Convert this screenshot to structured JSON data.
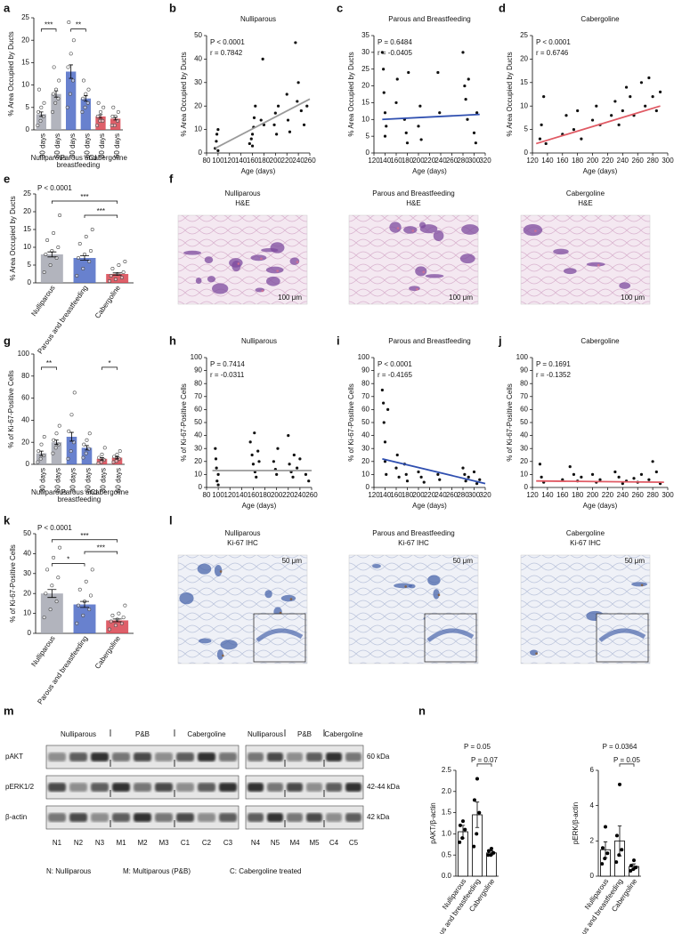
{
  "panel_labels": [
    "a",
    "b",
    "c",
    "d",
    "e",
    "f",
    "g",
    "h",
    "i",
    "j",
    "k",
    "l",
    "m",
    "n"
  ],
  "chart_data": [
    {
      "type": "bar",
      "ylabel": "% Area Occupied by Ducts",
      "categories": [
        "30 days",
        "60 days",
        "30 days",
        "60 days",
        "30 days",
        "60 days"
      ],
      "groups": [
        [
          "Nulliparous"
        ],
        [
          "Parous and",
          "breastfeeding"
        ],
        [
          "Cabergoline"
        ]
      ],
      "values": [
        3.5,
        8,
        13,
        7,
        3,
        2.5
      ],
      "errors": [
        0.5,
        0.7,
        1.5,
        0.6,
        0.4,
        0.3
      ],
      "points": [
        [
          1,
          2,
          3,
          4,
          5,
          6,
          9
        ],
        [
          4,
          6,
          7,
          8,
          9,
          11,
          14
        ],
        [
          5,
          8,
          11,
          14,
          17,
          20,
          24
        ],
        [
          4,
          5,
          6,
          7,
          8,
          9,
          11
        ],
        [
          1,
          2,
          2,
          3,
          4,
          5,
          6
        ],
        [
          1,
          1,
          2,
          3,
          3,
          4,
          5
        ]
      ],
      "colors": [
        "#a4a7b2",
        "#a4a7b2",
        "#4d6bc6",
        "#4d6bc6",
        "#d8434f",
        "#d8434f"
      ],
      "point_style": "open",
      "ylim": [
        0,
        25
      ],
      "yticks": [
        0,
        5,
        10,
        15,
        20,
        25
      ],
      "annotations": [
        "***",
        "**"
      ]
    },
    {
      "type": "scatter",
      "title": "Nulliparous",
      "xlabel": "Age (days)",
      "ylabel": "% Area Occupied by Ducts",
      "stats": [
        "P < 0.0001",
        "r = 0.7842"
      ],
      "x": [
        95,
        97,
        98,
        100,
        100,
        155,
        158,
        160,
        160,
        162,
        163,
        165,
        175,
        178,
        180,
        198,
        200,
        202,
        205,
        220,
        222,
        225,
        235,
        238,
        240,
        245,
        250,
        255
      ],
      "y": [
        2,
        5,
        8,
        1,
        10,
        4,
        6,
        3,
        8,
        11,
        15,
        20,
        14,
        40,
        12,
        12,
        17,
        8,
        20,
        25,
        14,
        9,
        47,
        22,
        30,
        18,
        12,
        20
      ],
      "color": "#111111",
      "fit": {
        "x": [
          95,
          260
        ],
        "y": [
          2,
          23
        ],
        "color": "#9a9a9a"
      },
      "xlim": [
        80,
        260
      ],
      "xticks": [
        80,
        100,
        120,
        140,
        160,
        180,
        200,
        220,
        240,
        260
      ],
      "ylim": [
        0,
        50
      ],
      "yticks": [
        0,
        10,
        20,
        30,
        40,
        50
      ]
    },
    {
      "type": "scatter",
      "title": "Parous and Breastfeeding",
      "xlabel": "Age (days)",
      "ylabel": "% Area Occupied by Ducts",
      "stats": [
        "P = 0.6484",
        "r = -0.0405"
      ],
      "x": [
        135,
        137,
        138,
        140,
        140,
        142,
        160,
        162,
        175,
        178,
        180,
        182,
        200,
        203,
        205,
        235,
        238,
        280,
        283,
        285,
        288,
        290,
        300,
        303,
        305
      ],
      "y": [
        30,
        25,
        18,
        12,
        5,
        8,
        15,
        22,
        10,
        6,
        3,
        24,
        8,
        14,
        4,
        24,
        12,
        30,
        20,
        16,
        10,
        22,
        6,
        3,
        12
      ],
      "color": "#111111",
      "fit": {
        "x": [
          135,
          310
        ],
        "y": [
          10,
          11.5
        ],
        "color": "#2f4fb0"
      },
      "xlim": [
        120,
        320
      ],
      "xticks": [
        120,
        140,
        160,
        180,
        200,
        220,
        240,
        260,
        280,
        300,
        320
      ],
      "ylim": [
        0,
        35
      ],
      "yticks": [
        0,
        5,
        10,
        15,
        20,
        25,
        30,
        35
      ]
    },
    {
      "type": "scatter",
      "title": "Cabergoline",
      "xlabel": "Age (days)",
      "ylabel": "% Area Occupied by Ducts",
      "stats": [
        "P < 0.0001",
        "r = 0.6746"
      ],
      "x": [
        130,
        132,
        135,
        138,
        160,
        165,
        175,
        180,
        185,
        200,
        205,
        210,
        225,
        230,
        235,
        240,
        245,
        250,
        255,
        265,
        270,
        275,
        280,
        285,
        290
      ],
      "y": [
        3,
        6,
        12,
        2,
        4,
        8,
        5,
        9,
        3,
        7,
        10,
        6,
        8,
        11,
        6,
        9,
        14,
        12,
        8,
        15,
        10,
        16,
        12,
        9,
        13
      ],
      "color": "#111111",
      "fit": {
        "x": [
          125,
          290
        ],
        "y": [
          2,
          10
        ],
        "color": "#e05a64"
      },
      "xlim": [
        120,
        300
      ],
      "xticks": [
        120,
        140,
        160,
        180,
        200,
        220,
        240,
        260,
        280,
        300
      ],
      "ylim": [
        0,
        25
      ],
      "yticks": [
        0,
        5,
        10,
        15,
        20,
        25
      ]
    },
    {
      "type": "bar",
      "ylabel": "% Area Occupied by Ducts",
      "categories": [
        "Nulliparous",
        "Parous and breastfeeding",
        "Cabergoline"
      ],
      "values": [
        8,
        7,
        2.5
      ],
      "errors": [
        0.7,
        0.6,
        0.3
      ],
      "points": [
        [
          3,
          5,
          7,
          8,
          9,
          10,
          12,
          14,
          19
        ],
        [
          2,
          4,
          6,
          7,
          8,
          9,
          11,
          13,
          15
        ],
        [
          0.5,
          1,
          1.5,
          2,
          2.5,
          3,
          4,
          5,
          6
        ]
      ],
      "colors": [
        "#a4a7b2",
        "#4d6bc6",
        "#d8434f"
      ],
      "point_style": "open",
      "ylim": [
        0,
        25
      ],
      "yticks": [
        0,
        5,
        10,
        15,
        20,
        25
      ],
      "stats": [
        "P < 0.0001"
      ],
      "annotations": [
        "***",
        "***"
      ]
    },
    {
      "type": "bar",
      "ylabel": "% of Ki-67-Positive Cells",
      "categories": [
        "30 days",
        "60 days",
        "30 days",
        "60 days",
        "30 days",
        "60 days"
      ],
      "groups": [
        [
          "Nulliparous"
        ],
        [
          "Parous and",
          "breastfeeding"
        ],
        [
          "Cabergoline"
        ]
      ],
      "values": [
        10,
        20,
        25,
        15,
        5,
        6
      ],
      "errors": [
        2,
        2,
        4,
        2,
        1,
        1
      ],
      "points": [
        [
          2,
          5,
          8,
          12,
          18,
          25
        ],
        [
          10,
          15,
          18,
          22,
          28,
          35
        ],
        [
          5,
          12,
          20,
          30,
          45,
          65
        ],
        [
          6,
          10,
          14,
          18,
          22,
          28
        ],
        [
          1,
          2,
          4,
          6,
          9,
          15
        ],
        [
          2,
          3,
          5,
          7,
          9,
          12
        ]
      ],
      "colors": [
        "#a4a7b2",
        "#a4a7b2",
        "#4d6bc6",
        "#4d6bc6",
        "#d8434f",
        "#d8434f"
      ],
      "point_style": "open",
      "ylim": [
        0,
        100
      ],
      "yticks": [
        0,
        20,
        40,
        60,
        80,
        100
      ],
      "annotations": [
        "**",
        "*"
      ]
    },
    {
      "type": "scatter",
      "title": "Nulliparous",
      "xlabel": "Age (days)",
      "ylabel": "% of Ki-67-Positive Cells",
      "stats": [
        "P = 0.7414",
        "r = -0.0311"
      ],
      "x": [
        95,
        96,
        97,
        98,
        100,
        100,
        155,
        158,
        160,
        162,
        163,
        165,
        168,
        170,
        195,
        198,
        200,
        202,
        220,
        222,
        225,
        228,
        230,
        235,
        240,
        250,
        255
      ],
      "y": [
        30,
        22,
        15,
        5,
        10,
        2,
        35,
        25,
        18,
        42,
        12,
        8,
        28,
        20,
        20,
        14,
        10,
        30,
        40,
        18,
        12,
        8,
        25,
        15,
        22,
        10,
        5
      ],
      "color": "#111111",
      "fit": {
        "x": [
          90,
          260
        ],
        "y": [
          13,
          13
        ],
        "color": "#9a9a9a"
      },
      "xlim": [
        80,
        260
      ],
      "xticks": [
        80,
        100,
        120,
        140,
        160,
        180,
        200,
        220,
        240,
        260
      ],
      "ylim": [
        0,
        100
      ],
      "yticks": [
        0,
        10,
        20,
        30,
        40,
        50,
        60,
        70,
        80,
        90,
        100
      ]
    },
    {
      "type": "scatter",
      "title": "Parous and Breastfeeding",
      "xlabel": "Age (days)",
      "ylabel": "% of Ki-67-Positive Cells",
      "stats": [
        "P < 0.0001",
        "r = -0.4165"
      ],
      "x": [
        135,
        137,
        138,
        140,
        140,
        142,
        145,
        160,
        162,
        165,
        175,
        178,
        180,
        200,
        205,
        210,
        235,
        238,
        280,
        283,
        285,
        290,
        300,
        305,
        310
      ],
      "y": [
        75,
        65,
        50,
        35,
        20,
        10,
        60,
        15,
        25,
        8,
        18,
        10,
        5,
        12,
        8,
        4,
        10,
        6,
        15,
        10,
        5,
        8,
        12,
        3,
        6
      ],
      "color": "#111111",
      "fit": {
        "x": [
          135,
          320
        ],
        "y": [
          22,
          3
        ],
        "color": "#2f4fb0"
      },
      "xlim": [
        120,
        320
      ],
      "xticks": [
        120,
        140,
        160,
        180,
        200,
        220,
        240,
        260,
        280,
        300,
        320
      ],
      "ylim": [
        0,
        100
      ],
      "yticks": [
        0,
        10,
        20,
        30,
        40,
        50,
        60,
        70,
        80,
        90,
        100
      ]
    },
    {
      "type": "scatter",
      "title": "Cabergoline",
      "xlabel": "Age (days)",
      "ylabel": "% of Ki-67-Positive Cells",
      "stats": [
        "P = 0.1691",
        "r = -0.1352"
      ],
      "x": [
        130,
        132,
        135,
        160,
        170,
        175,
        180,
        185,
        200,
        205,
        210,
        230,
        235,
        240,
        245,
        255,
        260,
        265,
        275,
        280,
        285,
        290
      ],
      "y": [
        18,
        8,
        4,
        6,
        16,
        10,
        5,
        8,
        10,
        4,
        6,
        12,
        8,
        3,
        5,
        7,
        4,
        10,
        6,
        20,
        12,
        3
      ],
      "color": "#111111",
      "fit": {
        "x": [
          125,
          295
        ],
        "y": [
          5,
          4
        ],
        "color": "#e05a64"
      },
      "xlim": [
        120,
        300
      ],
      "xticks": [
        120,
        140,
        160,
        180,
        200,
        220,
        240,
        260,
        280,
        300
      ],
      "ylim": [
        0,
        100
      ],
      "yticks": [
        0,
        10,
        20,
        30,
        40,
        50,
        60,
        70,
        80,
        90,
        100
      ]
    },
    {
      "type": "bar",
      "ylabel": "% of Ki-67-Positive Cells",
      "categories": [
        "Nulliparous",
        "Parous and breastfeeding",
        "Cabergoline"
      ],
      "values": [
        20,
        14.5,
        6.5
      ],
      "errors": [
        2,
        1.5,
        0.7
      ],
      "points": [
        [
          8,
          12,
          16,
          20,
          24,
          28,
          32,
          38,
          43
        ],
        [
          5,
          9,
          12,
          14,
          16,
          19,
          22,
          26,
          32
        ],
        [
          2,
          4,
          5,
          6,
          7,
          8,
          9,
          10,
          14
        ]
      ],
      "colors": [
        "#a4a7b2",
        "#4d6bc6",
        "#d8434f"
      ],
      "point_style": "open",
      "ylim": [
        0,
        50
      ],
      "yticks": [
        0,
        10,
        20,
        30,
        40,
        50
      ],
      "stats": [
        "P < 0.0001"
      ],
      "annotations": [
        "***",
        "***",
        "*"
      ]
    },
    {
      "type": "bar",
      "ylabel": "pAKT/β-actin",
      "categories": [
        "Nulliparous",
        "Parous and breastfeeding",
        "Cabergoline"
      ],
      "values": [
        1.05,
        1.45,
        0.55
      ],
      "errors": [
        0.15,
        0.3,
        0.05
      ],
      "points": [
        [
          0.8,
          0.9,
          1.1,
          1.2,
          1.3
        ],
        [
          0.7,
          1.0,
          1.5,
          1.8,
          2.3
        ],
        [
          0.5,
          0.5,
          0.55,
          0.6,
          0.65
        ]
      ],
      "colors": [
        "#ffffff",
        "#ffffff",
        "#ffffff"
      ],
      "bar_stroke": "#000000",
      "point_style": "filled",
      "ylim": [
        0,
        2.5
      ],
      "yticks": [
        {
          "value": 0,
          "label": "0.0"
        },
        0.5,
        {
          "value": 1,
          "label": "1.0"
        },
        1.5,
        {
          "value": 2,
          "label": "2.0"
        },
        2.5
      ],
      "stats": [
        "P = 0.05"
      ],
      "annotations": [
        "P = 0.07"
      ]
    },
    {
      "type": "bar",
      "ylabel": "pERK/β-actin",
      "categories": [
        "Nulliparous",
        "Parous and breastfeeding",
        "Cabergoline"
      ],
      "values": [
        1.5,
        2.0,
        0.55
      ],
      "errors": [
        0.45,
        0.85,
        0.15
      ],
      "points": [
        [
          0.7,
          1.0,
          1.3,
          1.6,
          2.8
        ],
        [
          0.8,
          1.2,
          1.5,
          2.3,
          5.2
        ],
        [
          0.3,
          0.4,
          0.5,
          0.6,
          0.9
        ]
      ],
      "colors": [
        "#ffffff",
        "#ffffff",
        "#ffffff"
      ],
      "bar_stroke": "#000000",
      "point_style": "filled",
      "ylim": [
        0,
        6
      ],
      "yticks": [
        0,
        2,
        4,
        6
      ],
      "stats": [
        "P = 0.0364"
      ],
      "annotations": [
        "P = 0.05"
      ]
    }
  ],
  "histology": [
    {
      "images": [
        {
          "title": "Nulliparous",
          "stain": "H&E",
          "scale_bar": "100 μm"
        },
        {
          "title": "Parous and Breastfeeding",
          "stain": "H&E",
          "scale_bar": "100 μm"
        },
        {
          "title": "Cabergoline",
          "stain": "H&E",
          "scale_bar": "100 μm"
        }
      ]
    },
    {
      "images": [
        {
          "title": "Nulliparous",
          "stain": "Ki-67 IHC",
          "scale_bar": "50 μm"
        },
        {
          "title": "Parous and Breastfeeding",
          "stain": "Ki-67 IHC",
          "scale_bar": "50 μm"
        },
        {
          "title": "Cabergoline",
          "stain": "Ki-67 IHC",
          "scale_bar": "50 μm"
        }
      ]
    }
  ],
  "western_blot": {
    "blots": [
      {
        "groups": [
          "Nulliparous",
          "P&B",
          "Cabergoline"
        ],
        "lanes": [
          "N1",
          "N2",
          "N3",
          "M1",
          "M2",
          "M3",
          "C1",
          "C2",
          "C3"
        ]
      },
      {
        "groups": [
          "Nulliparous",
          "P&B",
          "Cabergoline"
        ],
        "lanes": [
          "N4",
          "N5",
          "M4",
          "M5",
          "C4",
          "C5"
        ]
      }
    ],
    "rows": [
      "pAKT",
      "pERK1/2",
      "β-actin"
    ],
    "sizes": [
      "60 kDa",
      "42-44 kDa",
      "42 kDa"
    ],
    "legend": [
      "N: Nulliparous",
      "M: Multiparous (P&B)",
      "C: Cabergoline treated"
    ]
  }
}
